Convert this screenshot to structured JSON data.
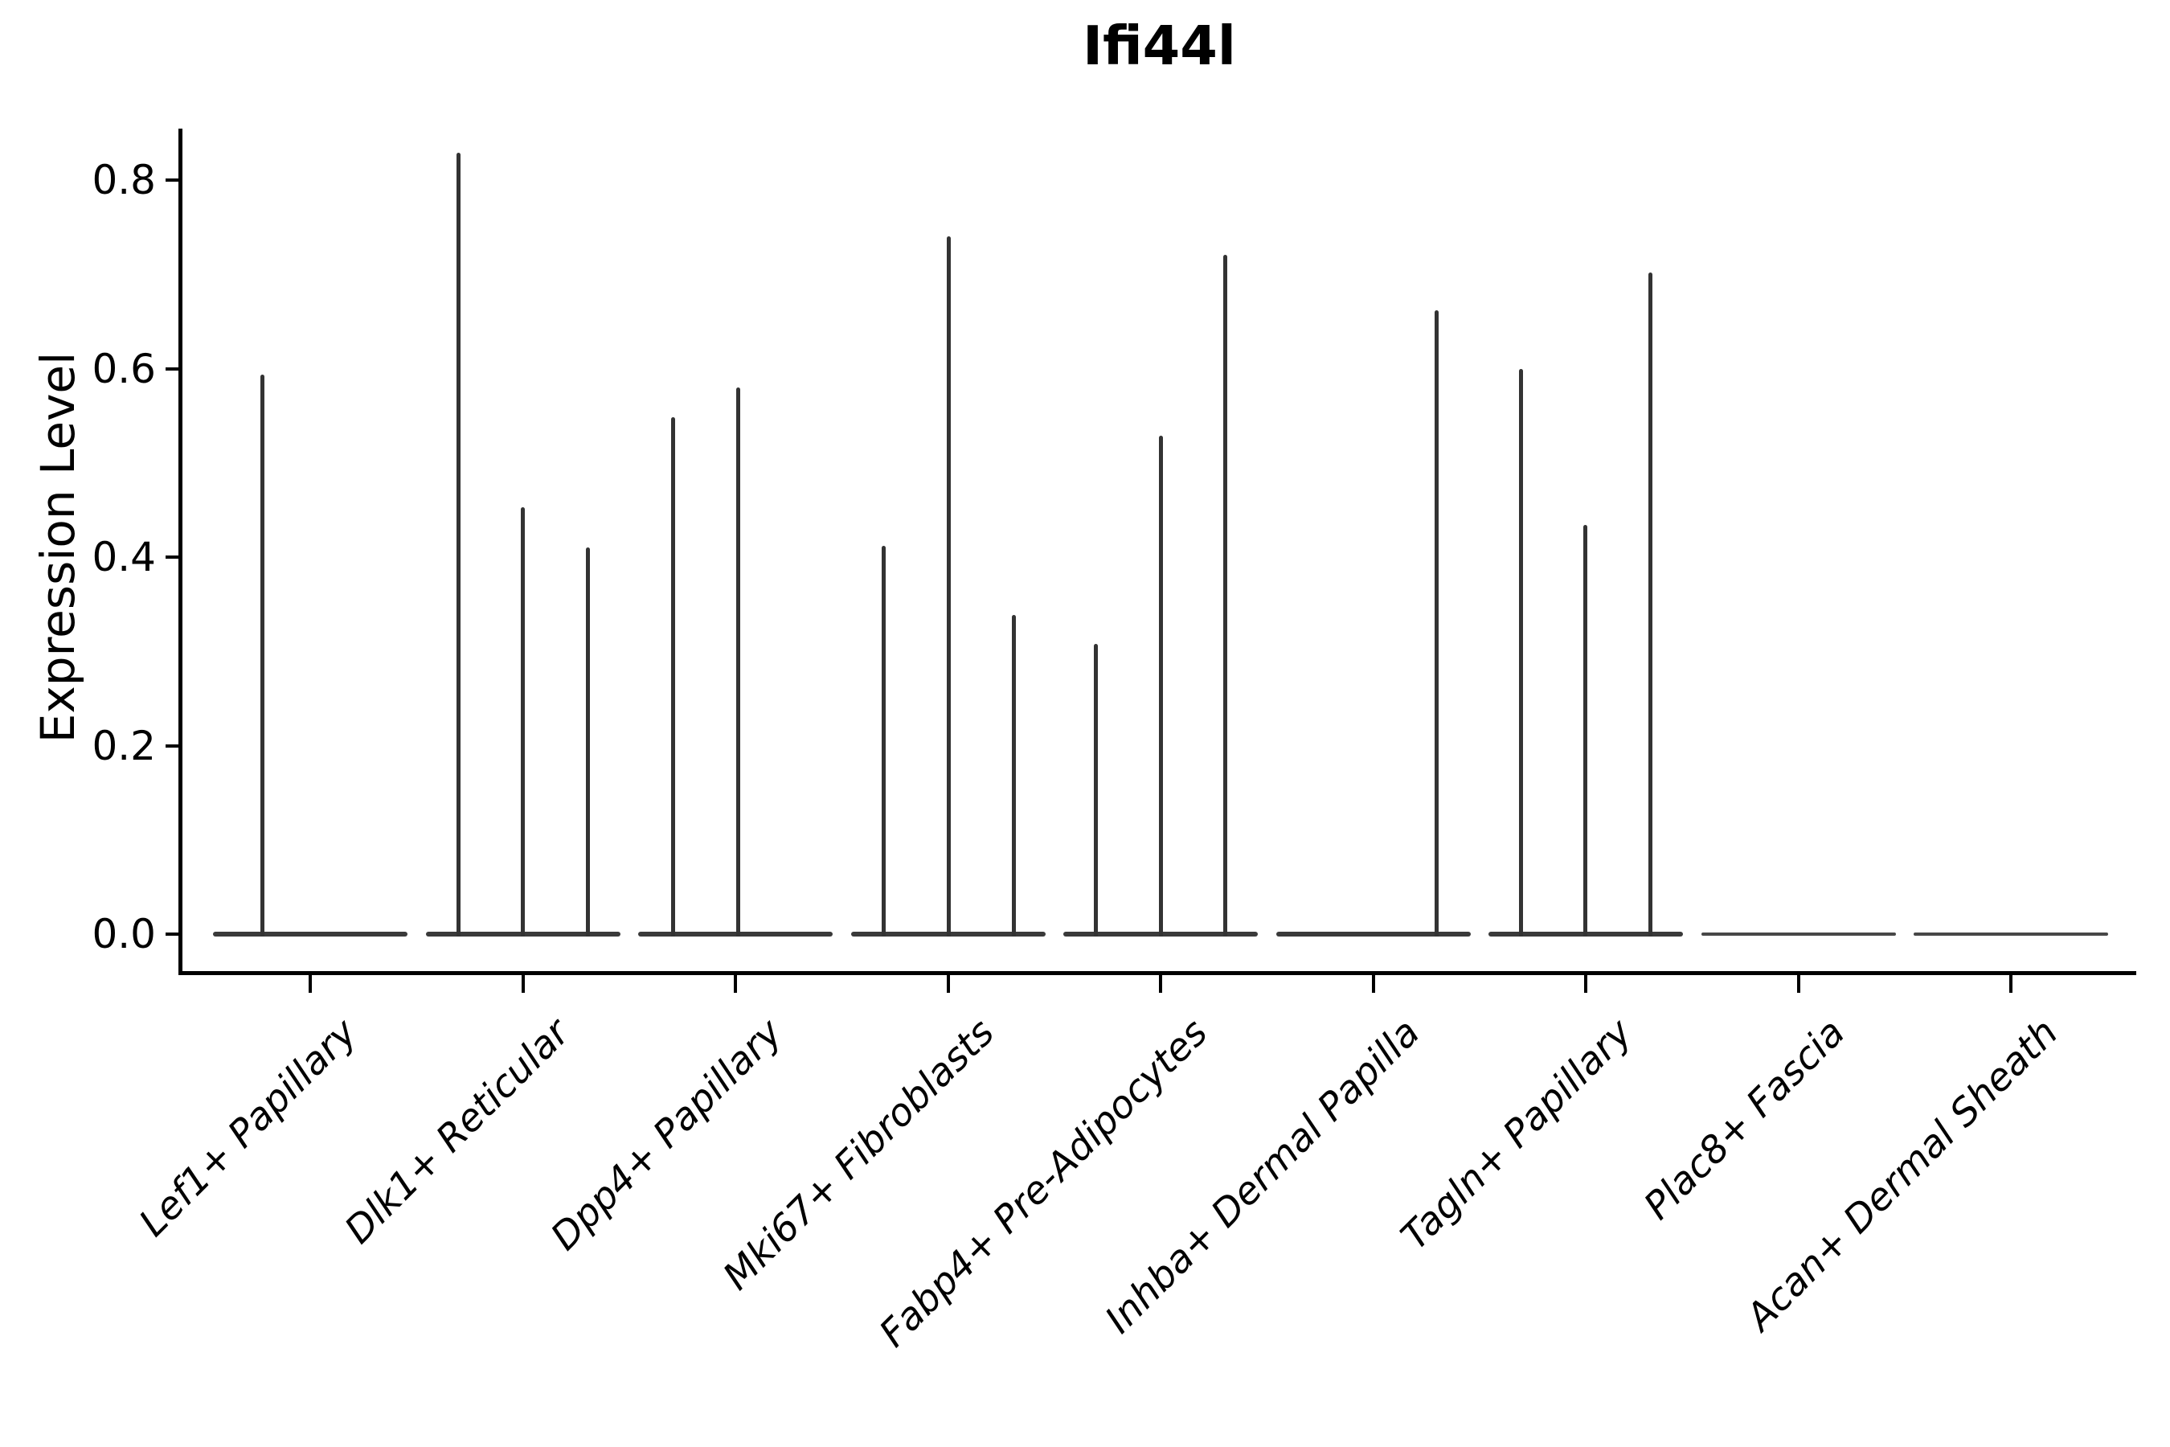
{
  "figure": {
    "title": "Ifi44l",
    "ylabel": "Expression Level"
  },
  "chart_data": {
    "type": "violin",
    "title": "Ifi44l",
    "xlabel": "",
    "ylabel": "Expression Level",
    "ylim": [
      0,
      0.855
    ],
    "yticks": [
      "0.0",
      "0.2",
      "0.4",
      "0.6",
      "0.8"
    ],
    "grid": false,
    "legend": null,
    "categories": [
      "Lef1+ Papillary",
      "Dlk1+ Reticular",
      "Dpp4+ Papillary",
      "Mki67+ Fibroblasts",
      "Fabp4+ Pre-Adipocytes",
      "Inhba+ Dermal Papilla",
      "Tagln+ Papillary",
      "Plac8+ Fascia",
      "Acan+ Dermal Sheath"
    ],
    "violins": [
      {
        "category": "Lef1+ Papillary",
        "has_base_line": true,
        "spikes": [
          {
            "dx": -60,
            "max": 0.594
          }
        ]
      },
      {
        "category": "Dlk1+ Reticular",
        "has_base_line": true,
        "spikes": [
          {
            "dx": -81,
            "max": 0.829
          },
          {
            "dx": -1,
            "max": 0.453
          },
          {
            "dx": 80,
            "max": 0.41
          }
        ]
      },
      {
        "category": "Dpp4+ Papillary",
        "has_base_line": true,
        "spikes": [
          {
            "dx": -78,
            "max": 0.548
          },
          {
            "dx": 3,
            "max": 0.58
          }
        ]
      },
      {
        "category": "Mki67+ Fibroblasts",
        "has_base_line": true,
        "spikes": [
          {
            "dx": -81,
            "max": 0.412
          },
          {
            "dx": 0,
            "max": 0.74
          },
          {
            "dx": 81,
            "max": 0.339
          }
        ]
      },
      {
        "category": "Fabp4+ Pre-Adipocytes",
        "has_base_line": true,
        "spikes": [
          {
            "dx": -81,
            "max": 0.308
          },
          {
            "dx": 0,
            "max": 0.529
          },
          {
            "dx": 80,
            "max": 0.721
          }
        ]
      },
      {
        "category": "Inhba+ Dermal Papilla",
        "has_base_line": true,
        "spikes": [
          {
            "dx": 78,
            "max": 0.662
          }
        ]
      },
      {
        "category": "Tagln+ Papillary",
        "has_base_line": true,
        "spikes": [
          {
            "dx": -81,
            "max": 0.6
          },
          {
            "dx": -1,
            "max": 0.434
          },
          {
            "dx": 80,
            "max": 0.702
          }
        ]
      },
      {
        "category": "Plac8+ Fascia",
        "has_base_line": true,
        "spikes": []
      },
      {
        "category": "Acan+ Dermal Sheath",
        "has_base_line": true,
        "spikes": []
      }
    ],
    "colors": {
      "violin_line": "#333333",
      "violin_base": "#3a3a3a",
      "violin_base_empty": "#474747",
      "axis": "#000000",
      "text": "#000000",
      "background": "#ffffff"
    }
  }
}
